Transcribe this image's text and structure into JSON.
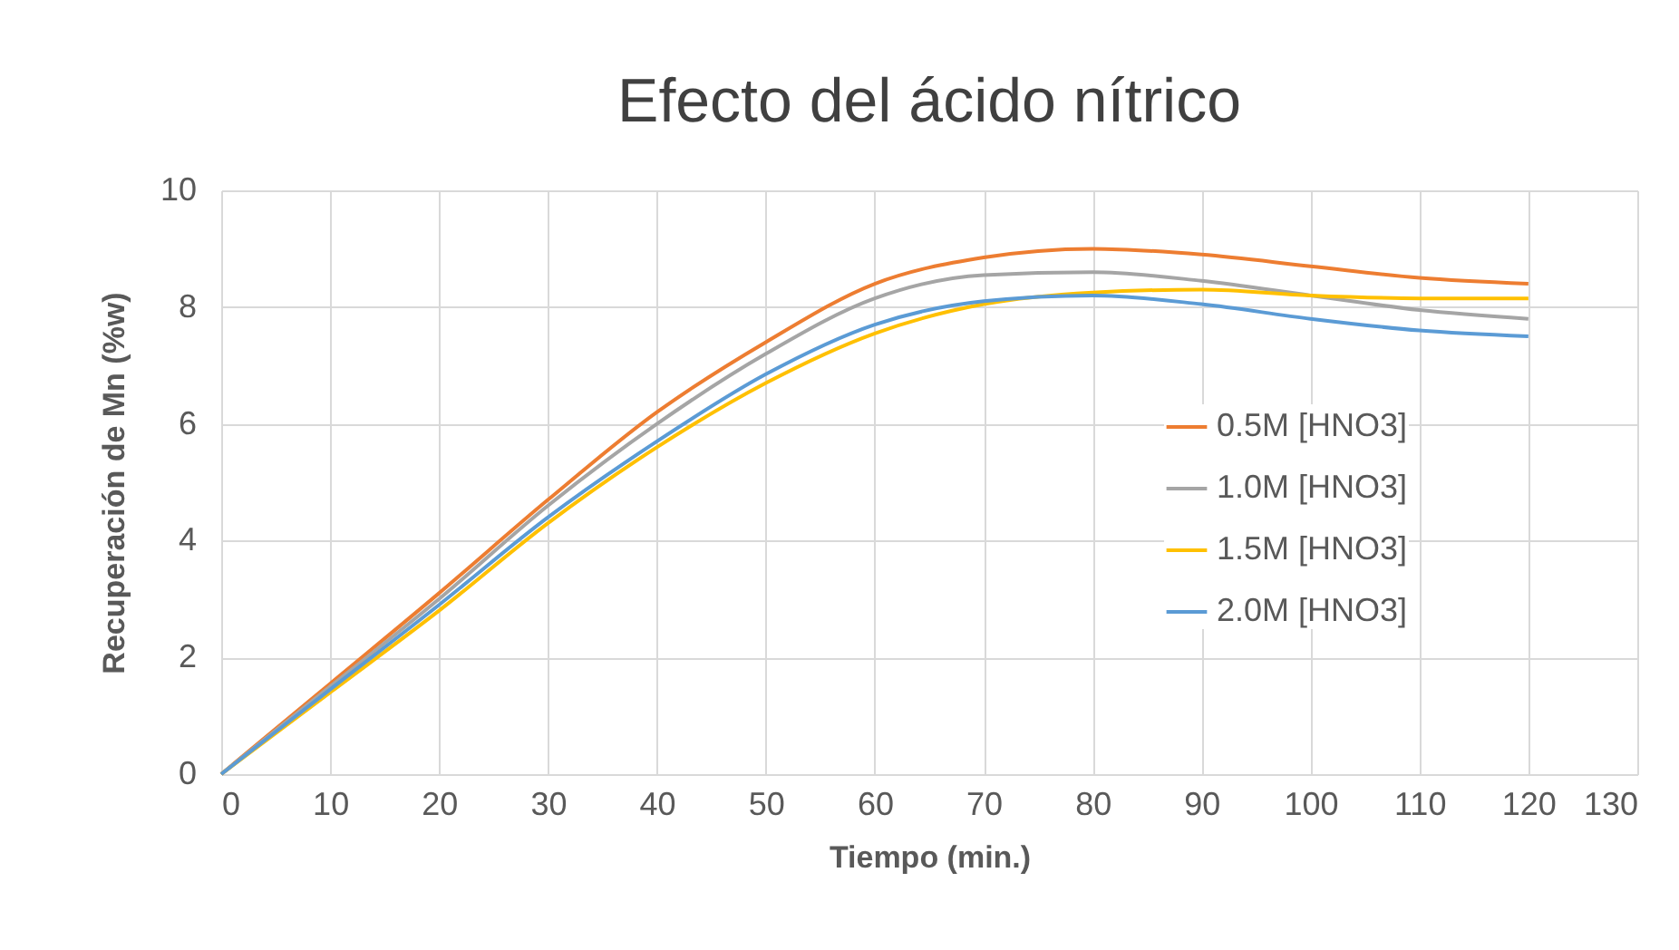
{
  "chart_data": {
    "type": "line",
    "title": "Efecto del ácido nítrico",
    "xlabel": "Tiempo (min.)",
    "ylabel": "Recuperación de Mn (%w)",
    "x": [
      0,
      10,
      20,
      30,
      40,
      50,
      60,
      70,
      80,
      90,
      100,
      110,
      120
    ],
    "series": [
      {
        "name": "0.5M [HNO3]",
        "color": "#ed7d31",
        "values": [
          0,
          1.55,
          3.1,
          4.7,
          6.2,
          7.4,
          8.4,
          8.85,
          9.0,
          8.9,
          8.7,
          8.5,
          8.4
        ]
      },
      {
        "name": "1.0M [HNO3]",
        "color": "#a5a5a5",
        "values": [
          0,
          1.5,
          3.0,
          4.6,
          6.0,
          7.2,
          8.15,
          8.55,
          8.6,
          8.45,
          8.2,
          7.95,
          7.8
        ]
      },
      {
        "name": "1.5M [HNO3]",
        "color": "#ffc000",
        "values": [
          0,
          1.4,
          2.8,
          4.3,
          5.6,
          6.7,
          7.55,
          8.05,
          8.25,
          8.3,
          8.2,
          8.15,
          8.15
        ]
      },
      {
        "name": "2.0M [HNO3]",
        "color": "#5b9bd5",
        "values": [
          0,
          1.45,
          2.9,
          4.4,
          5.7,
          6.85,
          7.7,
          8.1,
          8.2,
          8.05,
          7.8,
          7.6,
          7.5
        ]
      }
    ],
    "xlim": [
      0,
      130
    ],
    "xticks": [
      0,
      10,
      20,
      30,
      40,
      50,
      60,
      70,
      80,
      90,
      100,
      110,
      120,
      130
    ],
    "ylim": [
      0,
      10
    ],
    "yticks": [
      0,
      2,
      4,
      6,
      8,
      10
    ],
    "grid": true,
    "legend": "right",
    "marker": "none",
    "line_style": "solid"
  }
}
